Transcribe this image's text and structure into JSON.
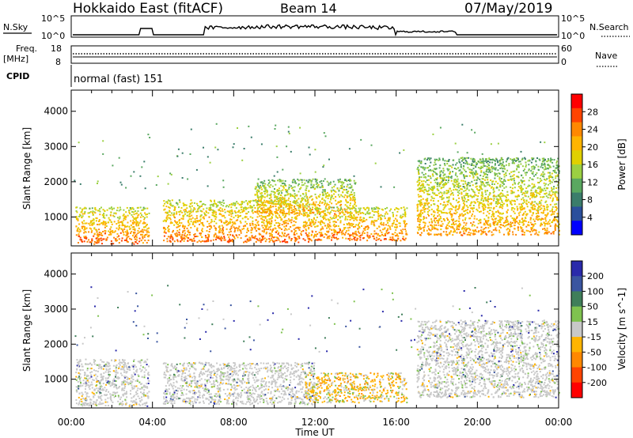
{
  "header": {
    "station": "Hokkaido East (fitACF)",
    "beam": "Beam 14",
    "date": "07/May/2019"
  },
  "top_panels": {
    "nsky_label": "N.Sky",
    "nsky_ticks": [
      "10^5",
      "10^0"
    ],
    "nsky_right_ticks": [
      "10^5",
      "10^0"
    ],
    "nsearch_label": "N.Search",
    "freq_label": "Freq.",
    "freq_unit": "[MHz]",
    "freq_ticks": [
      "18",
      "8"
    ],
    "nave_ticks": [
      "60",
      "0"
    ],
    "nave_label": "Nave",
    "cpid_label": "CPID",
    "cpid_text": "normal (fast) 151"
  },
  "axes": {
    "xlabel": "Time UT",
    "x_ticks": [
      "00:00",
      "04:00",
      "08:00",
      "12:00",
      "16:00",
      "20:00",
      "00:00"
    ],
    "ylabel": "Slant Range [km]",
    "y_ticks": [
      "1000",
      "2000",
      "3000",
      "4000"
    ]
  },
  "chart_data": [
    {
      "type": "heatmap",
      "title": "",
      "xlabel": "Time UT",
      "ylabel": "Slant Range [km]",
      "xlim": [
        0,
        24
      ],
      "ylim": [
        180,
        4600
      ],
      "colorbar_label": "Power [dB]",
      "colorbar_ticks": [
        "28",
        "24",
        "20",
        "16",
        "12",
        "8",
        "4"
      ],
      "colorbar_colors": [
        "#ff0000",
        "#ff4400",
        "#ff8800",
        "#ffb400",
        "#e0d000",
        "#9bd042",
        "#5aa860",
        "#3b7d6b",
        "#2b4f9c",
        "#0000ff"
      ],
      "regions": [
        {
          "t": [
            0.2,
            3.8
          ],
          "r": [
            250,
            1300
          ],
          "value": "strong"
        },
        {
          "t": [
            4.5,
            12.0
          ],
          "r": [
            300,
            1500
          ],
          "value": "strong"
        },
        {
          "t": [
            9.0,
            14.0
          ],
          "r": [
            1100,
            2100
          ],
          "value": "medium"
        },
        {
          "t": [
            12.0,
            16.5
          ],
          "r": [
            350,
            1300
          ],
          "value": "strong"
        },
        {
          "t": [
            17.0,
            24.0
          ],
          "r": [
            500,
            2700
          ],
          "value": "medium"
        }
      ]
    },
    {
      "type": "heatmap",
      "title": "",
      "xlabel": "Time UT",
      "ylabel": "Slant Range [km]",
      "xlim": [
        0,
        24
      ],
      "ylim": [
        180,
        4600
      ],
      "colorbar_label": "Velocity [m s^-1]",
      "colorbar_ticks": [
        "200",
        "100",
        "50",
        "15",
        "-15",
        "-50",
        "-100",
        "-200"
      ],
      "colorbar_colors": [
        "#2a2aaa",
        "#3a55a0",
        "#3f7e5a",
        "#7fc24f",
        "#c8c8c8",
        "#ffb400",
        "#ff8800",
        "#ff4400",
        "#ff0000"
      ],
      "regions": [
        {
          "t": [
            0.2,
            3.8
          ],
          "r": [
            250,
            1600
          ],
          "value": "ground"
        },
        {
          "t": [
            4.5,
            12.0
          ],
          "r": [
            300,
            1500
          ],
          "value": "ground"
        },
        {
          "t": [
            11.5,
            16.5
          ],
          "r": [
            350,
            1200
          ],
          "value": "negative"
        },
        {
          "t": [
            17.0,
            24.0
          ],
          "r": [
            500,
            2700
          ],
          "value": "ground"
        }
      ]
    }
  ]
}
